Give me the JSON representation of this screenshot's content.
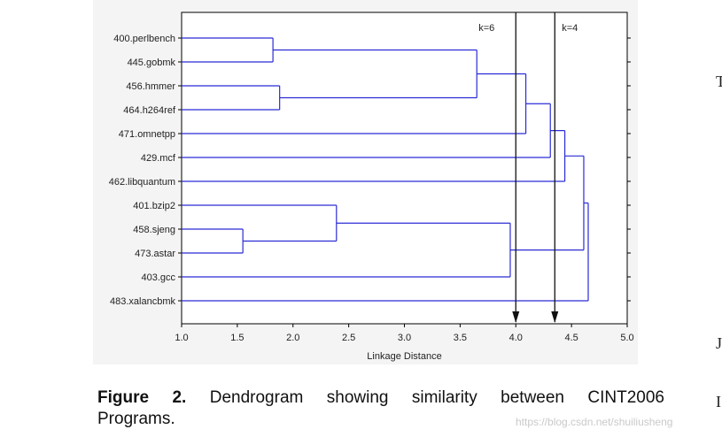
{
  "chart_data": {
    "type": "dendrogram",
    "xlabel": "Linkage Distance",
    "xlim": [
      1.0,
      5.0
    ],
    "xticks": [
      "1.0",
      "1.5",
      "2.0",
      "2.5",
      "3.0",
      "3.5",
      "4.0",
      "4.5",
      "5.0"
    ],
    "leaves": [
      "400.perlbench",
      "445.gobmk",
      "456.hmmer",
      "464.h264ref",
      "471.omnetpp",
      "429.mcf",
      "462.libquantum",
      "401.bzip2",
      "458.sjeng",
      "473.astar",
      "403.gcc",
      "483.xalancbmk"
    ],
    "merges": [
      {
        "a": "L0",
        "b": "L1",
        "distance": 1.82
      },
      {
        "a": "L2",
        "b": "L3",
        "distance": 1.88
      },
      {
        "a": "L8",
        "b": "L9",
        "distance": 1.55
      },
      {
        "a": "L7",
        "b": "M2",
        "distance": 2.39
      },
      {
        "a": "M0",
        "b": "M1",
        "distance": 3.65
      },
      {
        "a": "M3",
        "b": "L10",
        "distance": 3.95
      },
      {
        "a": "M4",
        "b": "L4",
        "distance": 4.09
      },
      {
        "a": "M6",
        "b": "L5",
        "distance": 4.31
      },
      {
        "a": "M7",
        "b": "L6",
        "distance": 4.44
      },
      {
        "a": "M8",
        "b": "M5",
        "distance": 4.61
      },
      {
        "a": "M9",
        "b": "L11",
        "distance": 4.65
      }
    ],
    "cut_lines": [
      {
        "label": "k=6",
        "distance": 4.0
      },
      {
        "label": "k=4",
        "distance": 4.35
      }
    ],
    "colors": {
      "tree": "#2b2bd6",
      "axis": "#000000",
      "cut": "#111111"
    }
  },
  "caption": {
    "label": "Figure 2.",
    "text": "Dendrogram showing similarity between CINT2006",
    "text2": "Programs."
  },
  "watermark": "https://blog.csdn.net/shuiliusheng",
  "edge_glyphs": [
    "T",
    "J",
    "I"
  ]
}
